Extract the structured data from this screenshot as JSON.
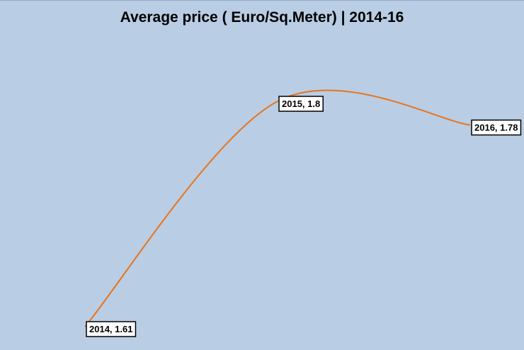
{
  "chart_data": {
    "type": "line",
    "title": "Average price ( Euro/Sq.Meter) | 2014-16",
    "x": [
      2014,
      2015,
      2016
    ],
    "series": [
      {
        "values": [
          1.61,
          1.8,
          1.78
        ]
      }
    ],
    "data_labels": [
      "2014, 1.61",
      "2015, 1.8",
      "2016, 1.78"
    ],
    "smooth": true,
    "grid": false,
    "legend": "none",
    "colors": {
      "line": "#e8741c",
      "background": "#b9cde4",
      "label_bg": "#ffffff",
      "label_border": "#000000"
    }
  }
}
